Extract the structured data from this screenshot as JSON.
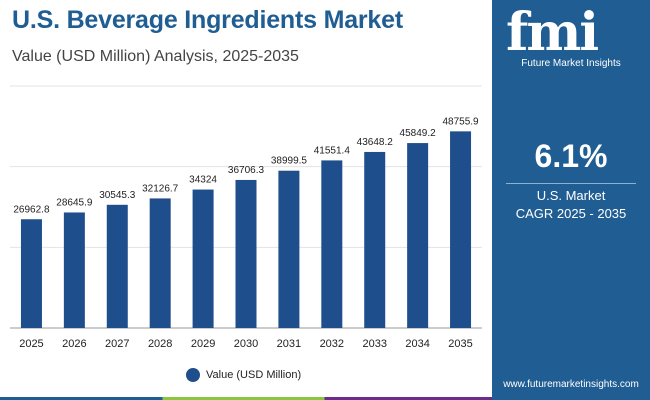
{
  "header": {
    "title": "U.S. Beverage Ingredients Market",
    "subtitle": "Value (USD Million) Analysis, 2025-2035"
  },
  "chart_data": {
    "type": "bar",
    "categories": [
      "2025",
      "2026",
      "2027",
      "2028",
      "2029",
      "2030",
      "2031",
      "2032",
      "2033",
      "2034",
      "2035"
    ],
    "series": [
      {
        "name": "Value (USD Million)",
        "values": [
          26962.8,
          28645.9,
          30545.3,
          32126.7,
          34324,
          36706.3,
          38999.5,
          41551.4,
          43648.2,
          45849.2,
          48755.9
        ],
        "value_labels": [
          "26962.8",
          "28645.9",
          "30545.3",
          "32126.7",
          "34324",
          "36706.3",
          "38999.5",
          "41551.4",
          "43648.2",
          "45849.2",
          "48755.9"
        ]
      }
    ],
    "title": "U.S. Beverage Ingredients Market",
    "xlabel": "",
    "ylabel": "",
    "ylim": [
      0,
      60000
    ],
    "grid": true,
    "legend": "bottom-center",
    "bar_color": "#1f4e8c"
  },
  "legend": {
    "label": "Value (USD Million)",
    "color": "#1f4e8c"
  },
  "side_panel": {
    "logo_text": "fmi",
    "logo_subtitle": "Future Market Insights",
    "cagr_value": "6.1%",
    "cagr_label_line1": "U.S. Market",
    "cagr_label_line2": "CAGR 2025 - 2035",
    "website": "www.futuremarketinsights.com"
  },
  "colors": {
    "accent": "#1f5d93",
    "bar": "#1f4e8c"
  }
}
